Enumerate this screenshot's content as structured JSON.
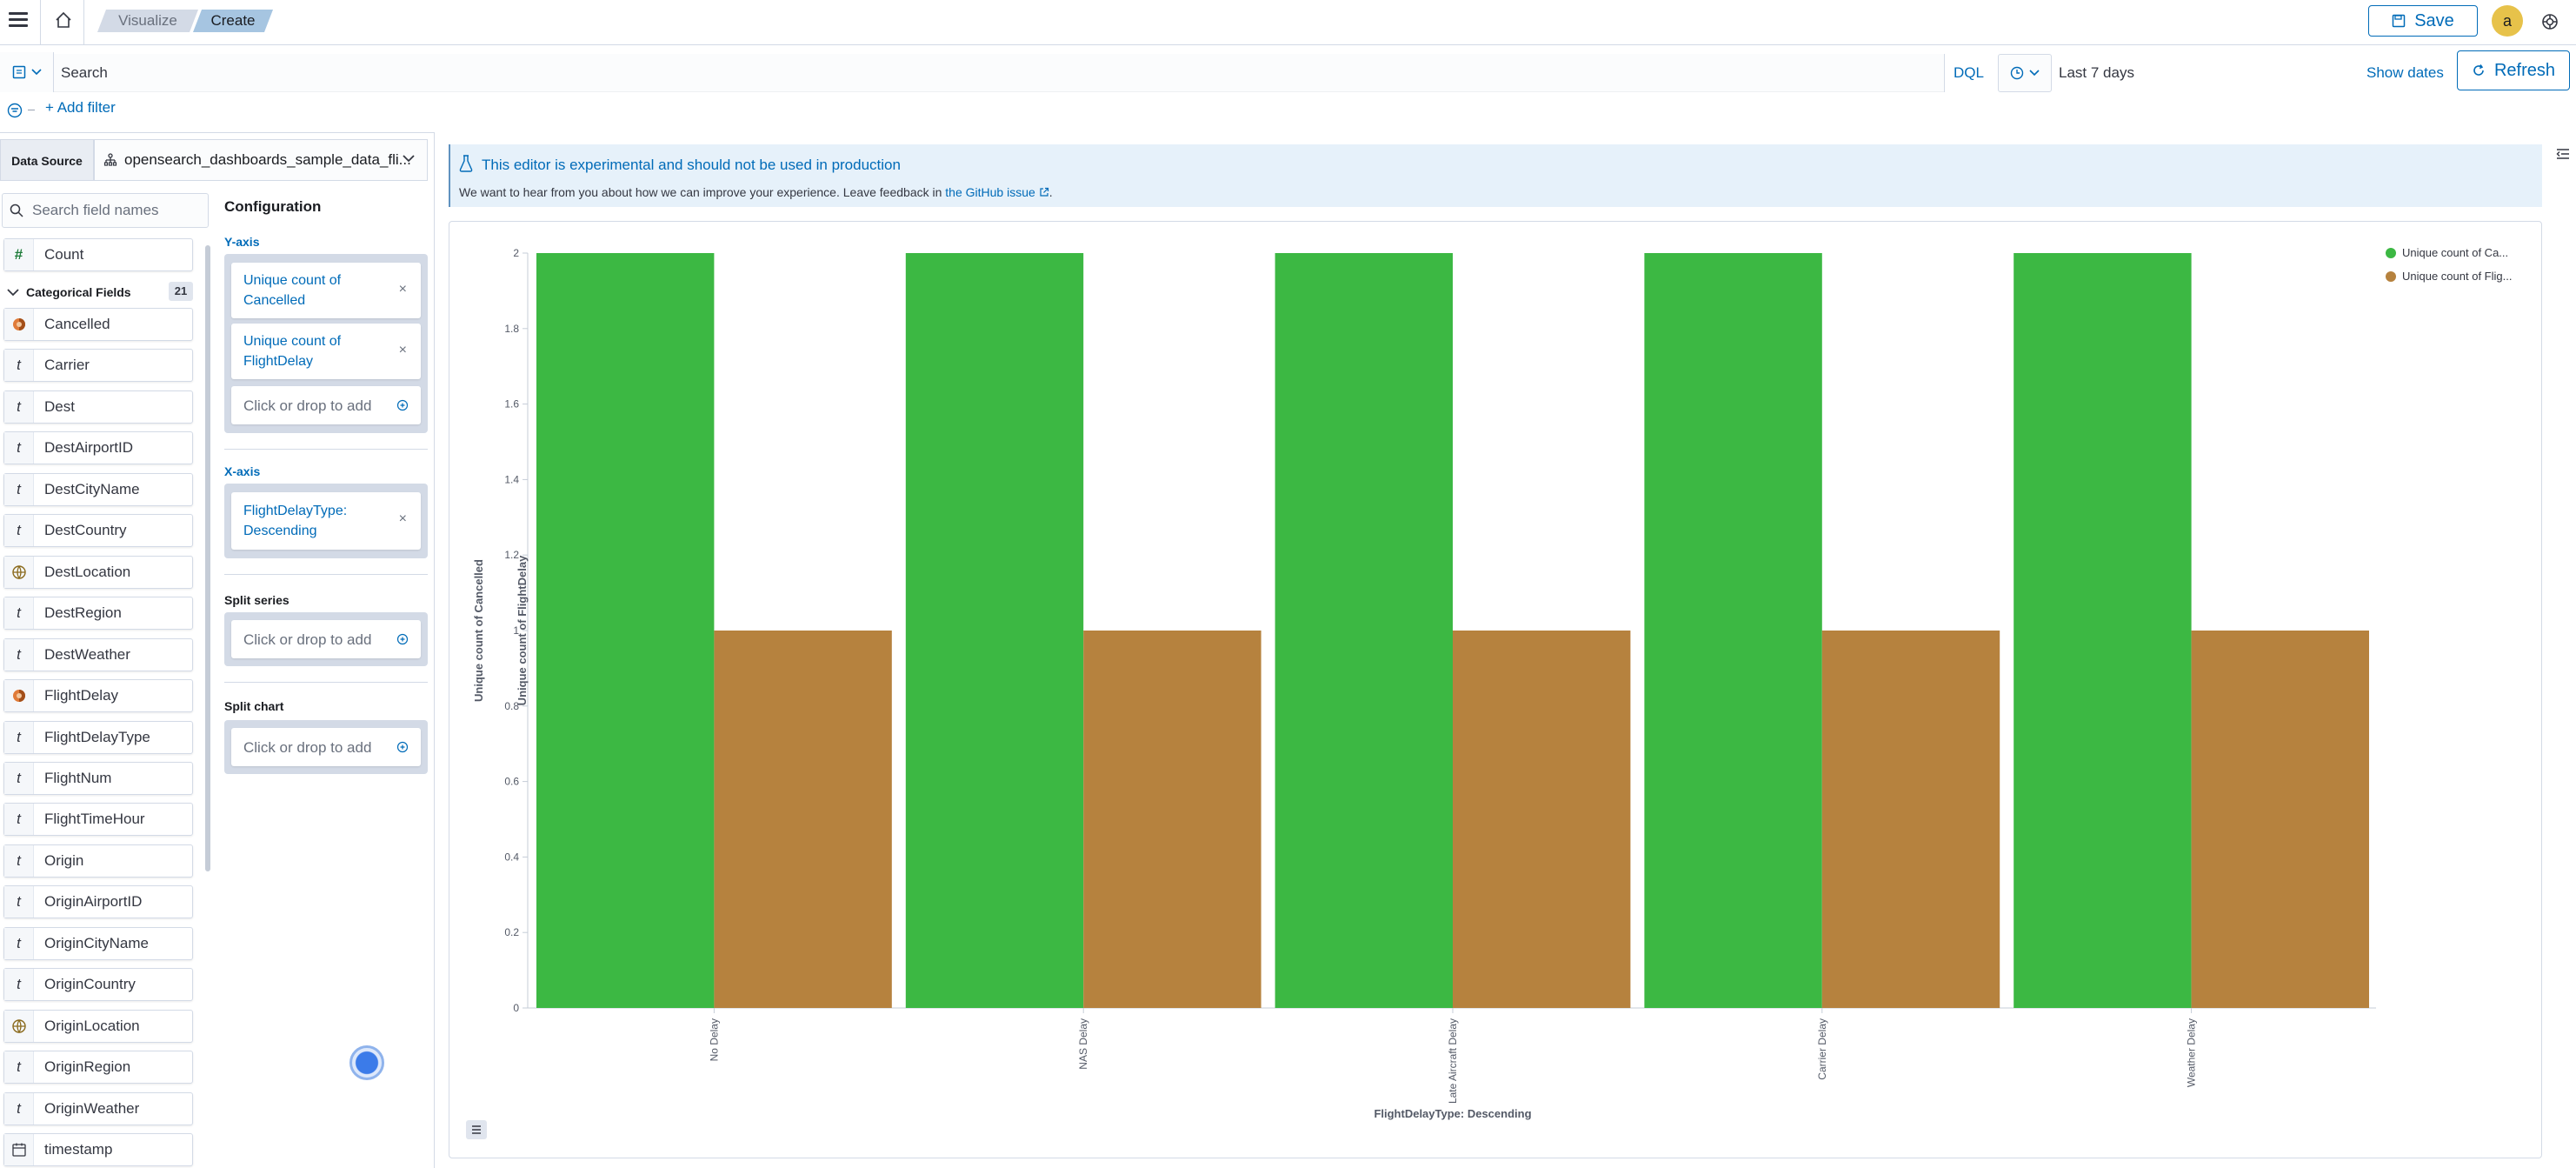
{
  "header": {
    "breadcrumbs": [
      "Visualize",
      "Create"
    ],
    "save_label": "Save",
    "avatar_initial": "a"
  },
  "query": {
    "search_placeholder": "Search",
    "language": "DQL",
    "date_range": "Last 7 days",
    "show_dates": "Show dates",
    "refresh_label": "Refresh",
    "add_filter": "+ Add filter"
  },
  "data_source": {
    "label": "Data Source",
    "value": "opensearch_dashboards_sample_data_fli..."
  },
  "field_search_placeholder": "Search field names",
  "fields": {
    "count_field": "Count",
    "categorical_header": "Categorical Fields",
    "categorical_count": "21",
    "items": [
      {
        "name": "Cancelled",
        "type": "boolean"
      },
      {
        "name": "Carrier",
        "type": "string"
      },
      {
        "name": "Dest",
        "type": "string"
      },
      {
        "name": "DestAirportID",
        "type": "string"
      },
      {
        "name": "DestCityName",
        "type": "string"
      },
      {
        "name": "DestCountry",
        "type": "string"
      },
      {
        "name": "DestLocation",
        "type": "geo"
      },
      {
        "name": "DestRegion",
        "type": "string"
      },
      {
        "name": "DestWeather",
        "type": "string"
      },
      {
        "name": "FlightDelay",
        "type": "boolean"
      },
      {
        "name": "FlightDelayType",
        "type": "string"
      },
      {
        "name": "FlightNum",
        "type": "string"
      },
      {
        "name": "FlightTimeHour",
        "type": "string"
      },
      {
        "name": "Origin",
        "type": "string"
      },
      {
        "name": "OriginAirportID",
        "type": "string"
      },
      {
        "name": "OriginCityName",
        "type": "string"
      },
      {
        "name": "OriginCountry",
        "type": "string"
      },
      {
        "name": "OriginLocation",
        "type": "geo"
      },
      {
        "name": "OriginRegion",
        "type": "string"
      },
      {
        "name": "OriginWeather",
        "type": "string"
      },
      {
        "name": "timestamp",
        "type": "date"
      }
    ]
  },
  "config": {
    "title": "Configuration",
    "y_axis_label": "Y-axis",
    "y_items": [
      {
        "line1": "Unique count of",
        "line2": "Cancelled"
      },
      {
        "line1": "Unique count of",
        "line2": "FlightDelay"
      }
    ],
    "x_axis_label": "X-axis",
    "x_items": [
      {
        "line1": "FlightDelayType:",
        "line2": "Descending"
      }
    ],
    "split_series_label": "Split series",
    "split_chart_label": "Split chart",
    "drop_text": "Click or drop to add",
    "remove_glyph": "×"
  },
  "callout": {
    "title": "This editor is experimental and should not be used in production",
    "body_prefix": "We want to hear from you about how we can improve your experience. Leave feedback in ",
    "link_text": "the GitHub issue",
    "body_suffix": "."
  },
  "colors": {
    "series1": "#3cb843",
    "series2": "#b6823e",
    "accent": "#006bb8"
  },
  "chart_data": {
    "type": "bar",
    "categories": [
      "No Delay",
      "NAS Delay",
      "Late Aircraft Delay",
      "Carrier Delay",
      "Weather Delay"
    ],
    "series": [
      {
        "name": "Unique count of Ca...",
        "values": [
          2,
          2,
          2,
          2,
          2
        ]
      },
      {
        "name": "Unique count of Flig...",
        "values": [
          1,
          1,
          1,
          1,
          1
        ]
      }
    ],
    "xlabel": "FlightDelayType: Descending",
    "ylabels": [
      "Unique count of Cancelled",
      "Unique count of FlightDelay"
    ],
    "ylim": [
      0,
      2
    ],
    "yticks": [
      "0",
      "0.2",
      "0.4",
      "0.6",
      "0.8",
      "1",
      "1.2",
      "1.4",
      "1.6",
      "1.8",
      "2"
    ],
    "legend_position": "top-right",
    "grid": false
  }
}
